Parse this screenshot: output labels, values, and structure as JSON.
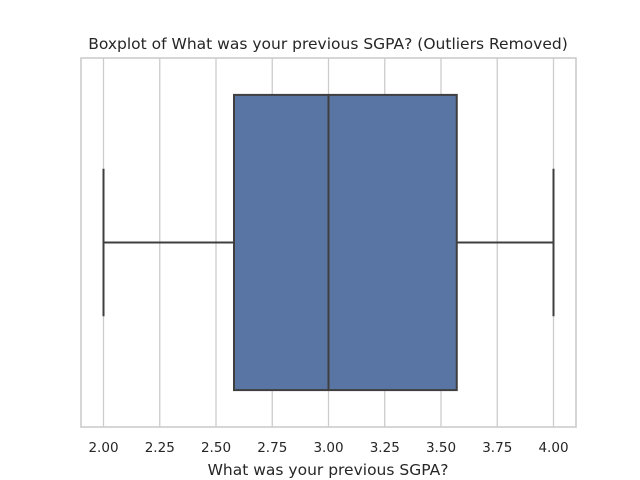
{
  "chart_data": {
    "type": "boxplot",
    "title": "Boxplot of What was your previous SGPA? (Outliers Removed)",
    "xlabel": "What was your previous SGPA?",
    "ylabel": "",
    "orientation": "horizontal",
    "xlim": [
      1.9,
      4.1
    ],
    "xticks": [
      2.0,
      2.25,
      2.5,
      2.75,
      3.0,
      3.25,
      3.5,
      3.75,
      4.0
    ],
    "xtick_labels": [
      "2.00",
      "2.25",
      "2.50",
      "2.75",
      "3.00",
      "3.25",
      "3.50",
      "3.75",
      "4.00"
    ],
    "grid": "vertical",
    "box": {
      "whisker_low": 2.0,
      "q1": 2.58,
      "median": 3.0,
      "q3": 3.57,
      "whisker_high": 4.0
    },
    "colors": {
      "box_fill": "#5875a4",
      "line": "#3f3f3f",
      "grid": "#cccccc",
      "frame": "#cccccc"
    }
  }
}
